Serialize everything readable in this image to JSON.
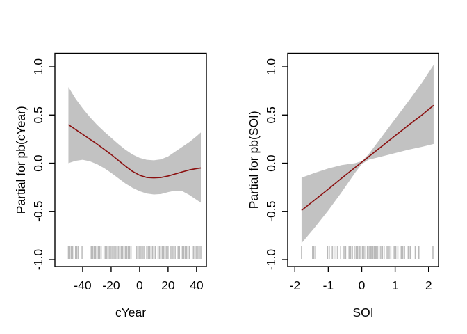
{
  "figure": {
    "background": "#ffffff",
    "colors": {
      "term_line": "#8b0f0f",
      "se_band": "#c2c2c2",
      "rug": "#b9b9b9",
      "axis": "#000000",
      "text": "#000000"
    }
  },
  "chart_data": [
    {
      "type": "line",
      "name": "pb-cYear",
      "title": "",
      "xlabel": "cYear",
      "ylabel": "Partial for pb(cYear)",
      "xlim": [
        -59.5,
        46.9
      ],
      "ylim": [
        -1.072,
        1.141
      ],
      "xticks": [
        -40,
        -20,
        0,
        20,
        40
      ],
      "xtick_labels": [
        "-40",
        "-20",
        "0",
        "20",
        "40"
      ],
      "yticks": [
        -1.0,
        -0.5,
        0.0,
        0.5,
        1.0
      ],
      "ytick_labels": [
        "-1.0",
        "-0.5",
        "0.0",
        "0.5",
        "1.0"
      ],
      "grid": false,
      "legend": "none",
      "x": [
        -50,
        -45,
        -40,
        -35,
        -30,
        -25,
        -20,
        -15,
        -10,
        -5,
        0,
        5,
        10,
        15,
        20,
        25,
        30,
        35,
        40,
        43
      ],
      "fit": [
        0.4,
        0.35,
        0.3,
        0.25,
        0.2,
        0.145,
        0.09,
        0.03,
        -0.03,
        -0.085,
        -0.125,
        -0.148,
        -0.152,
        -0.148,
        -0.133,
        -0.112,
        -0.09,
        -0.07,
        -0.056,
        -0.05
      ],
      "upper": [
        0.79,
        0.67,
        0.57,
        0.48,
        0.4,
        0.33,
        0.265,
        0.2,
        0.14,
        0.09,
        0.055,
        0.035,
        0.03,
        0.04,
        0.07,
        0.12,
        0.17,
        0.22,
        0.28,
        0.32
      ],
      "lower": [
        0.0,
        0.025,
        0.035,
        0.02,
        -0.01,
        -0.05,
        -0.1,
        -0.155,
        -0.21,
        -0.255,
        -0.29,
        -0.315,
        -0.325,
        -0.32,
        -0.3,
        -0.285,
        -0.29,
        -0.33,
        -0.38,
        -0.41
      ],
      "rug": [
        -50,
        -49,
        -48,
        -47,
        -45,
        -44,
        -43,
        -41,
        -40,
        -34,
        -33,
        -32,
        -31,
        -30,
        -29,
        -28,
        -27,
        -25,
        -24,
        -23,
        -22,
        -21,
        -20,
        -19,
        -18,
        -17,
        -16,
        -15,
        -14,
        -13,
        -12,
        -11,
        -10,
        -9,
        -8,
        -7,
        -6,
        -2,
        -1,
        0,
        1,
        2,
        3,
        5,
        6,
        7,
        8,
        9,
        10,
        11,
        13,
        14,
        15,
        16,
        17,
        18,
        19,
        20,
        22,
        23,
        24,
        25,
        27,
        28,
        30,
        31,
        32,
        33,
        34,
        35,
        37,
        38,
        39,
        40,
        41,
        42,
        43
      ]
    },
    {
      "type": "line",
      "name": "pb-SOI",
      "title": "",
      "xlabel": "SOI",
      "ylabel": "Partial for pb(SOI)",
      "xlim": [
        -2.214,
        2.297
      ],
      "ylim": [
        -1.072,
        1.141
      ],
      "xticks": [
        -2,
        -1,
        0,
        1,
        2
      ],
      "xtick_labels": [
        "-2",
        "-1",
        "0",
        "1",
        "2"
      ],
      "yticks": [
        -1.0,
        -0.5,
        0.0,
        0.5,
        1.0
      ],
      "ytick_labels": [
        "-1.0",
        "-0.5",
        "0.0",
        "0.5",
        "1.0"
      ],
      "grid": false,
      "legend": "none",
      "x": [
        -1.8,
        -1.4,
        -1.0,
        -0.6,
        -0.2,
        0.0,
        0.2,
        0.6,
        1.0,
        1.4,
        1.8,
        2.15
      ],
      "fit": [
        -0.49,
        -0.38,
        -0.27,
        -0.155,
        -0.045,
        0.01,
        0.065,
        0.175,
        0.285,
        0.395,
        0.5,
        0.6
      ],
      "upper": [
        -0.15,
        -0.1,
        -0.055,
        -0.02,
        0.0,
        0.02,
        0.09,
        0.275,
        0.46,
        0.645,
        0.835,
        1.02
      ],
      "lower": [
        -0.83,
        -0.665,
        -0.49,
        -0.3,
        -0.1,
        -0.01,
        0.035,
        0.07,
        0.105,
        0.14,
        0.17,
        0.2
      ],
      "rug": [
        -1.8,
        -1.47,
        -1.43,
        -1.38,
        -1.02,
        -0.97,
        -0.88,
        -0.83,
        -0.77,
        -0.72,
        -0.63,
        -0.53,
        -0.48,
        -0.38,
        -0.33,
        -0.28,
        -0.22,
        -0.17,
        -0.12,
        -0.07,
        -0.03,
        0.02,
        0.07,
        0.12,
        0.17,
        0.22,
        0.27,
        0.3,
        0.33,
        0.37,
        0.4,
        0.43,
        0.47,
        0.52,
        0.57,
        0.62,
        0.67,
        0.76,
        0.82,
        0.87,
        0.97,
        1.02,
        1.08,
        1.18,
        1.23,
        1.28,
        1.39,
        1.45,
        1.6,
        1.71,
        2.13
      ]
    }
  ]
}
